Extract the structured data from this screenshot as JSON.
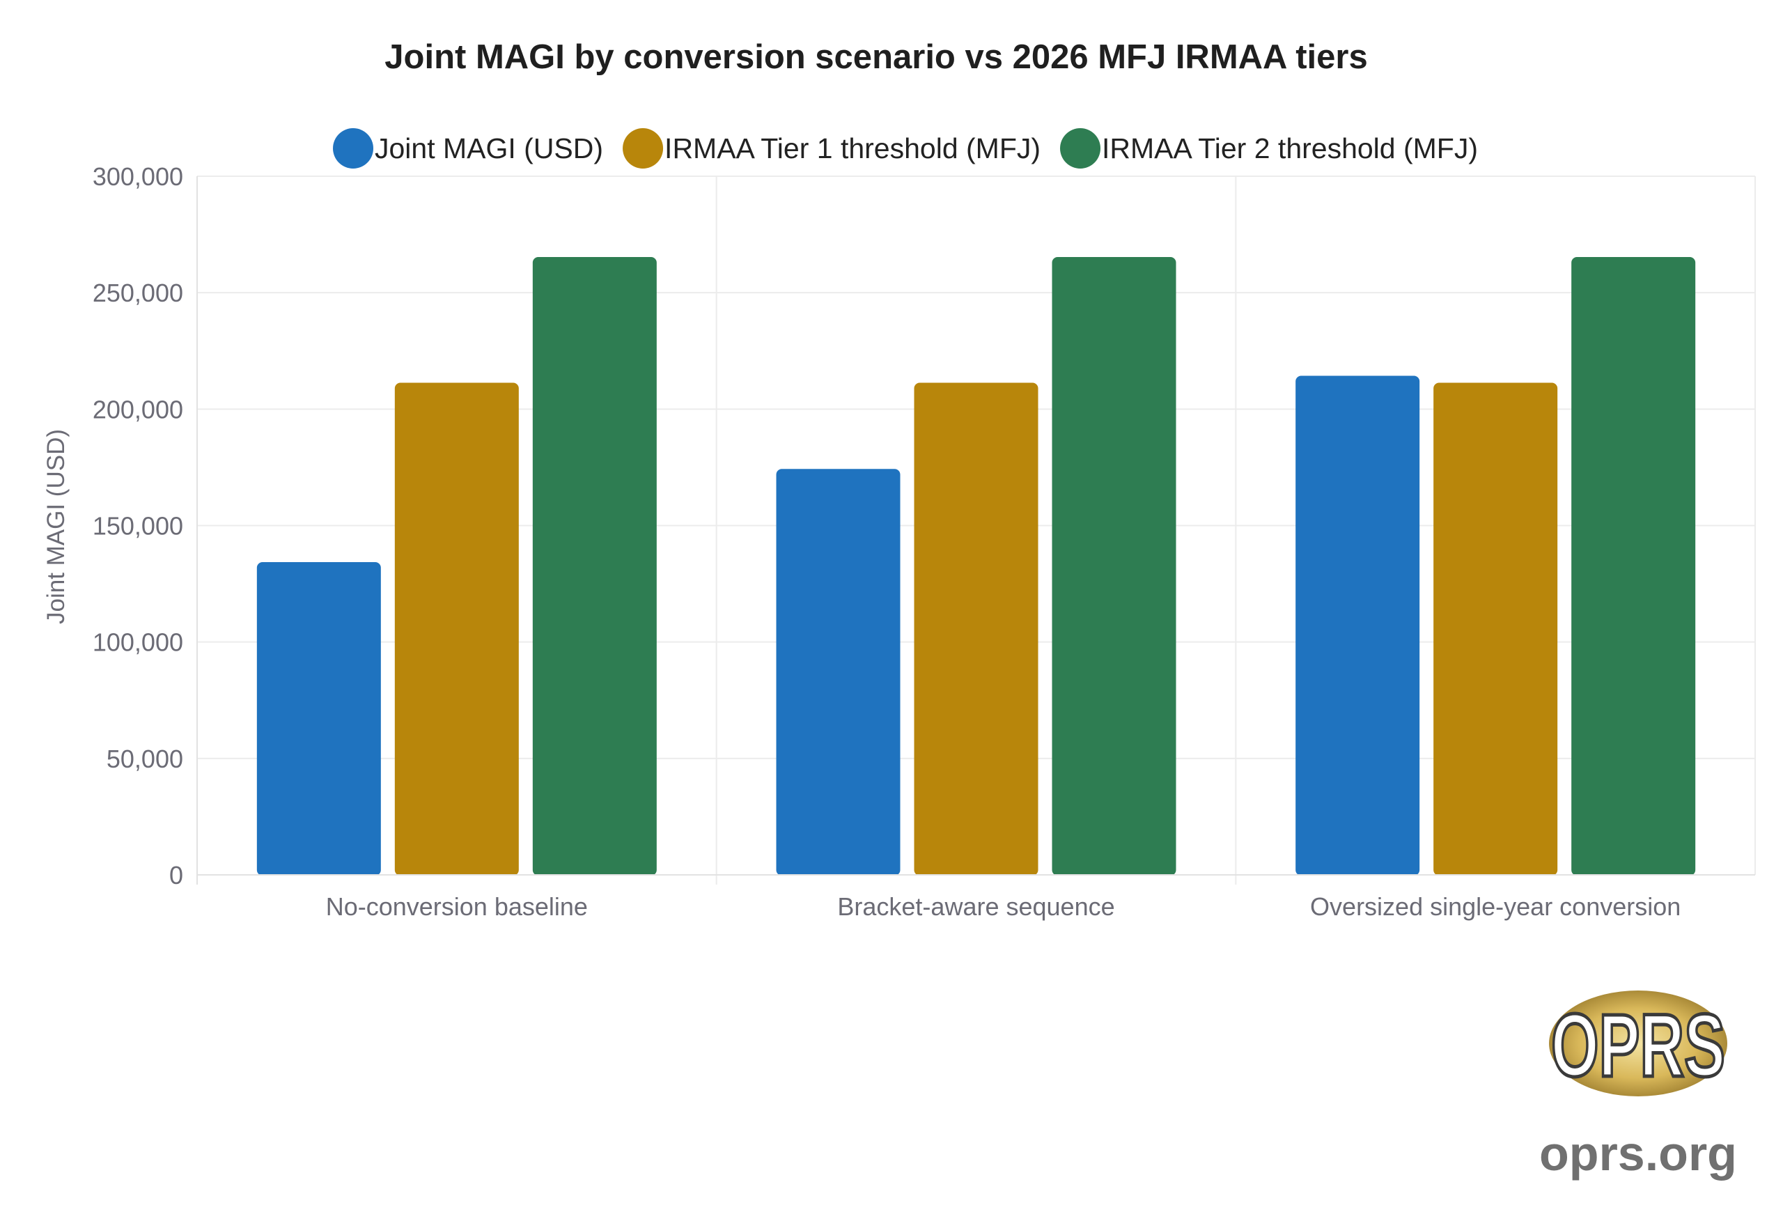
{
  "chart_data": {
    "type": "bar",
    "title": "Joint MAGI by conversion scenario vs 2026 MFJ IRMAA tiers",
    "xlabel": "",
    "ylabel": "Joint MAGI (USD)",
    "ylim": [
      0,
      300000
    ],
    "yticks": [
      0,
      50000,
      100000,
      150000,
      200000,
      250000,
      300000
    ],
    "ytick_labels": [
      "0",
      "50,000",
      "100,000",
      "150,000",
      "200,000",
      "250,000",
      "300,000"
    ],
    "categories": [
      "No-conversion baseline",
      "Bracket-aware sequence",
      "Oversized single-year conversion"
    ],
    "series": [
      {
        "name": "Joint MAGI (USD)",
        "color": "#1f73bf",
        "values": [
          134000,
          174000,
          214000
        ]
      },
      {
        "name": "IRMAA Tier 1 threshold (MFJ)",
        "color": "#b8860b",
        "values": [
          211000,
          211000,
          211000
        ]
      },
      {
        "name": "IRMAA Tier 2 threshold (MFJ)",
        "color": "#2e7d52",
        "values": [
          265000,
          265000,
          265000
        ]
      }
    ],
    "legend_position": "top-center",
    "grid": true
  },
  "watermark": {
    "logo_text": "OPRS",
    "site_text": "oprs.org"
  }
}
